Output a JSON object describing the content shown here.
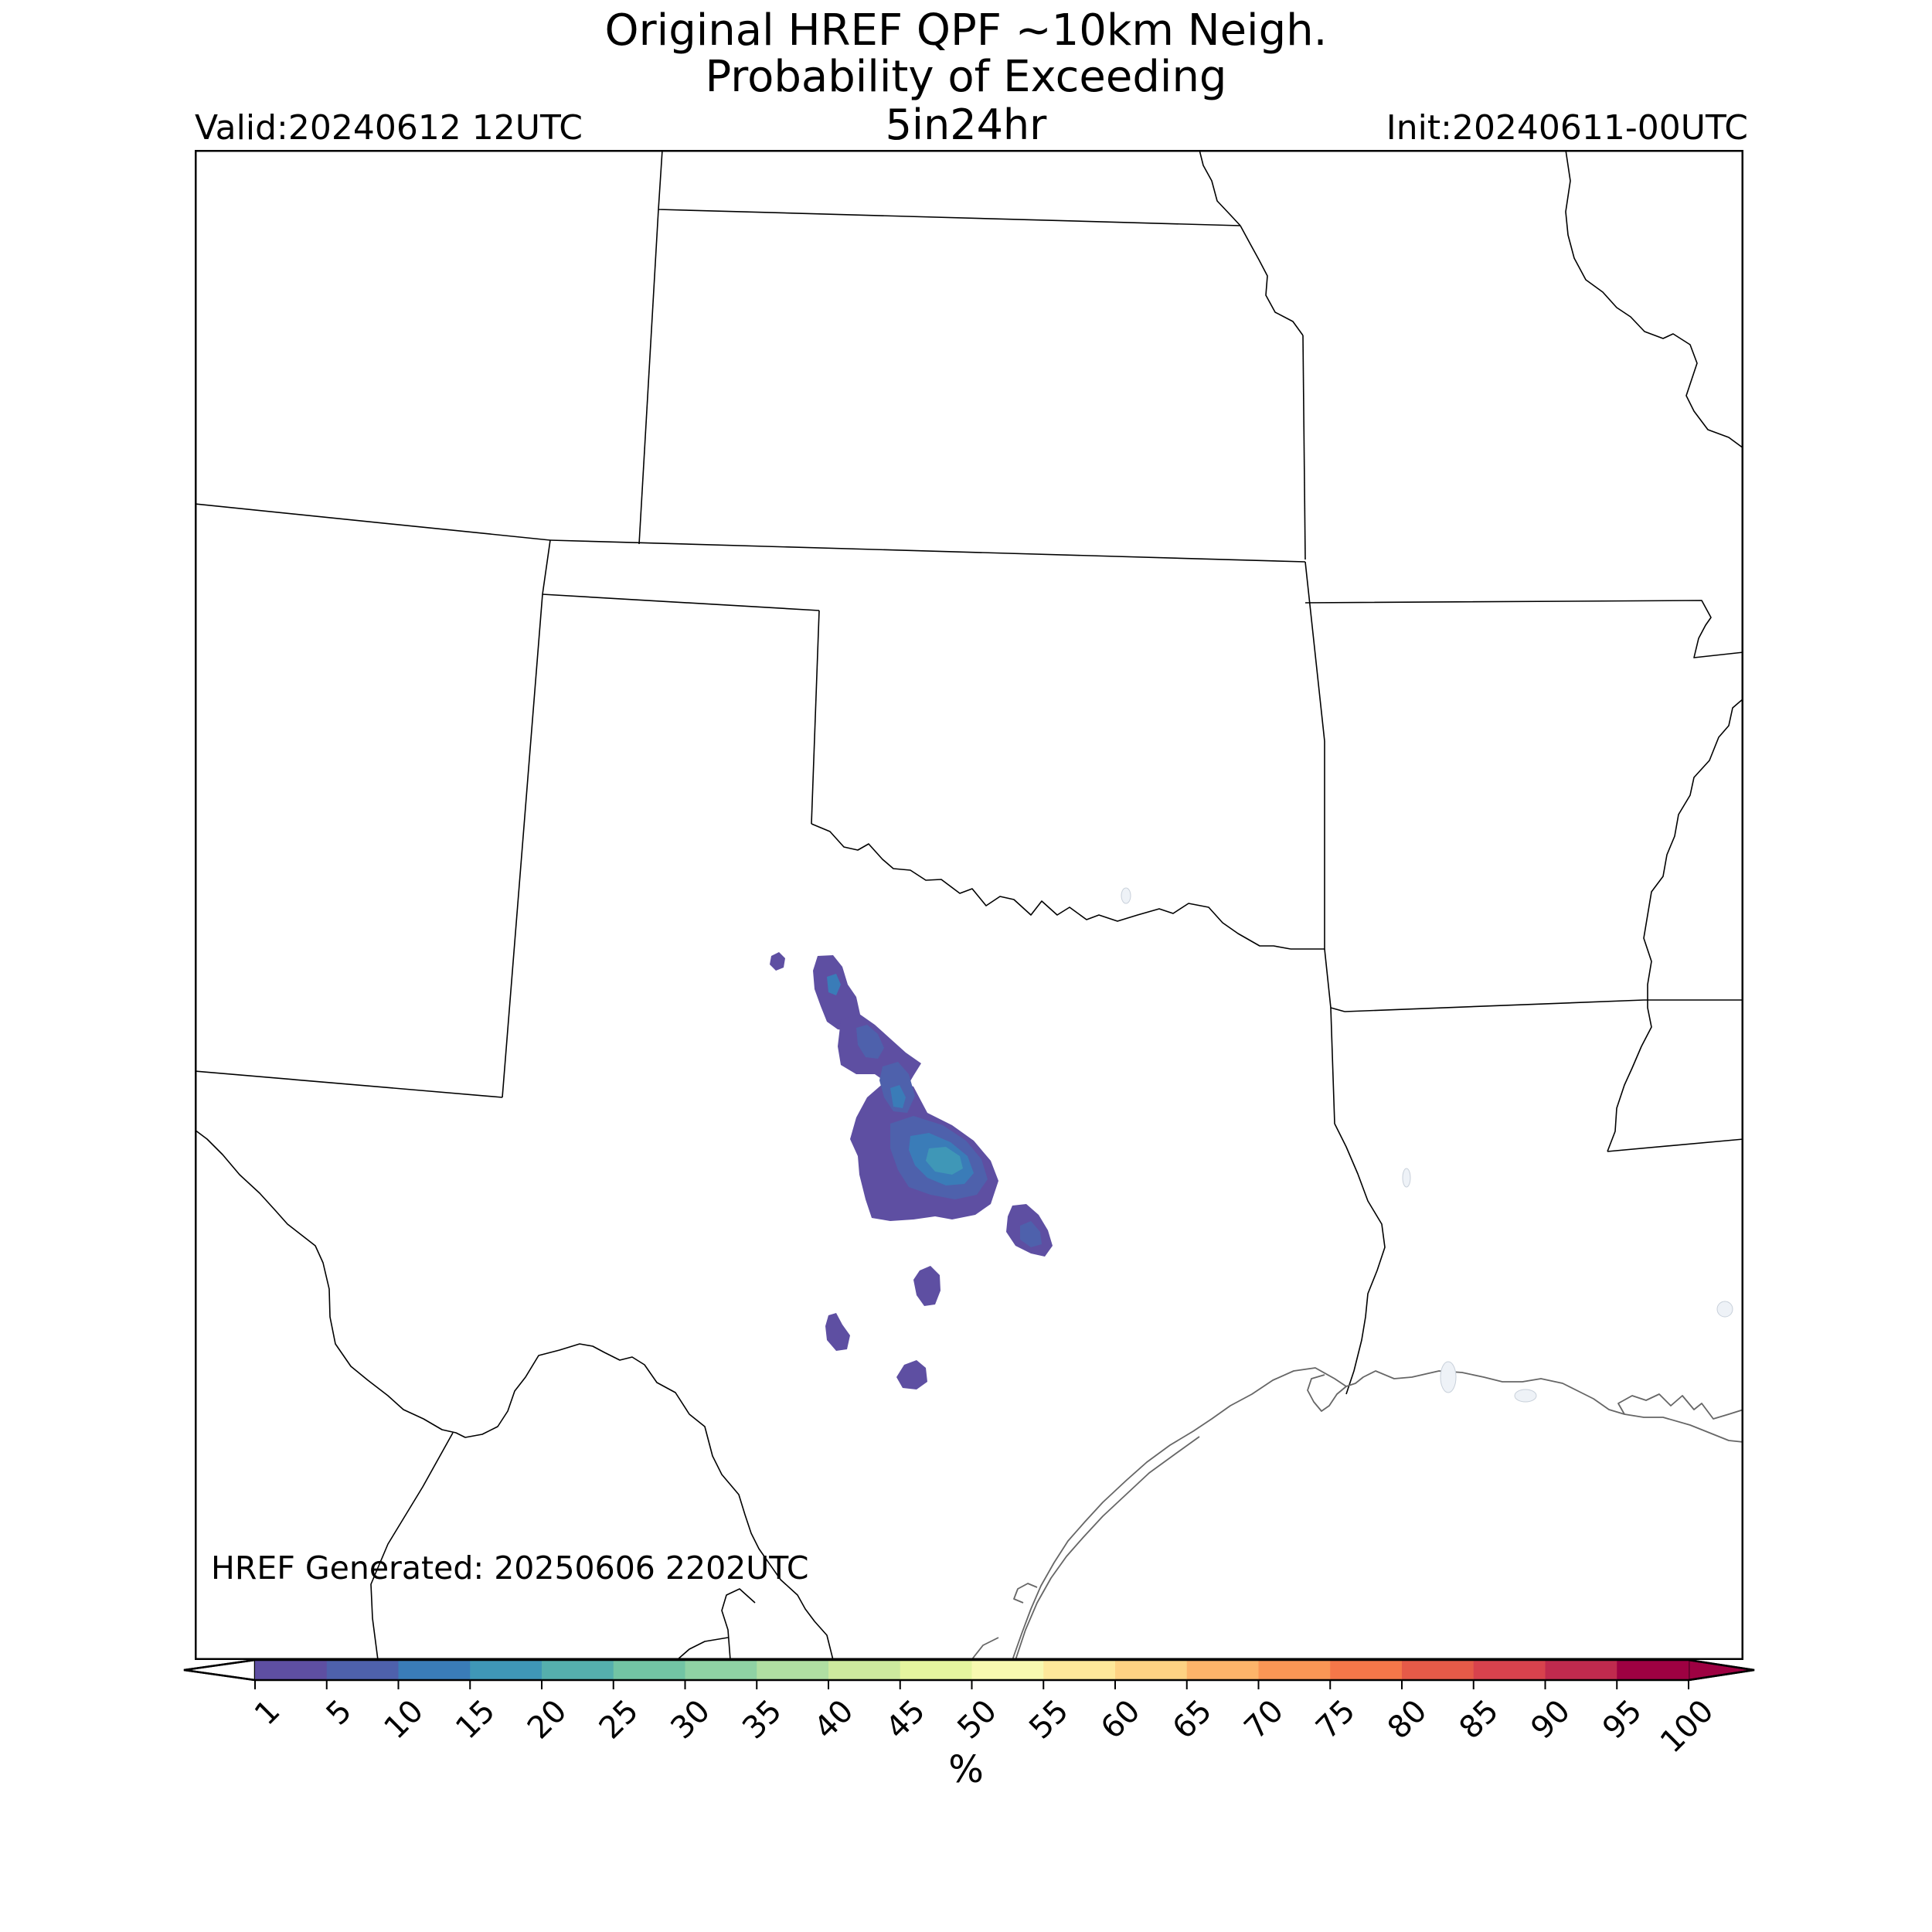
{
  "title": {
    "line1": "Original HREF QPF ~10km Neigh.",
    "line2": "Probability of Exceeding",
    "line3": "5in24hr"
  },
  "valid_label": "Valid:20240612 12UTC",
  "init_label": "Init:20240611-00UTC",
  "generated_label": "HREF Generated: 20250606 2202UTC",
  "colorbar": {
    "unit": "%",
    "ticks": [
      "1",
      "5",
      "10",
      "15",
      "20",
      "25",
      "30",
      "35",
      "40",
      "45",
      "50",
      "55",
      "60",
      "65",
      "70",
      "75",
      "80",
      "85",
      "90",
      "95",
      "100"
    ],
    "colors": [
      "#5e4fa2",
      "#4e61ac",
      "#3a7cb8",
      "#3f97b7",
      "#55afad",
      "#72c4a4",
      "#8fd2a4",
      "#b0dfa2",
      "#cdea9e",
      "#e5f59f",
      "#f8f9b0",
      "#fee89a",
      "#fed283",
      "#fdb46a",
      "#fa9655",
      "#f57749",
      "#e65a48",
      "#d8424d",
      "#c02a4e",
      "#9e0142"
    ],
    "extend": "both"
  },
  "field_colors": {
    "p1": "#5e4fa2",
    "p5": "#4e61ac",
    "p10": "#3a7cb8",
    "p15": "#3f97b7"
  },
  "line_colors": {
    "state_border": "#000000",
    "coastline": "#666666",
    "frame": "#000000"
  }
}
